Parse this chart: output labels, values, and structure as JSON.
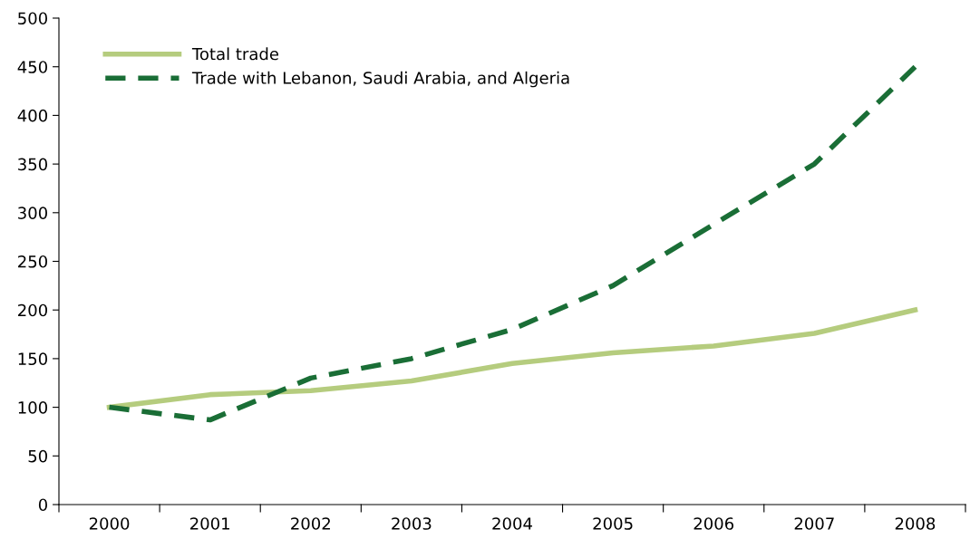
{
  "chart_data": {
    "type": "line",
    "categories": [
      "2000",
      "2001",
      "2002",
      "2003",
      "2004",
      "2005",
      "2006",
      "2007",
      "2008"
    ],
    "series": [
      {
        "name": "Total trade",
        "color": "#b5cc7e",
        "line_style": "solid",
        "values": [
          100,
          113,
          117,
          127,
          145,
          156,
          163,
          176,
          200
        ]
      },
      {
        "name": "Trade with Lebanon, Saudi Arabia, and Algeria",
        "color": "#1a6e36",
        "line_style": "dashed",
        "values": [
          100,
          87,
          130,
          150,
          180,
          225,
          288,
          350,
          450
        ]
      }
    ],
    "ylim": [
      0,
      500
    ],
    "yticks": [
      0,
      50,
      100,
      150,
      200,
      250,
      300,
      350,
      400,
      450,
      500
    ],
    "grid": false,
    "legend": "top left",
    "marker": "none"
  }
}
